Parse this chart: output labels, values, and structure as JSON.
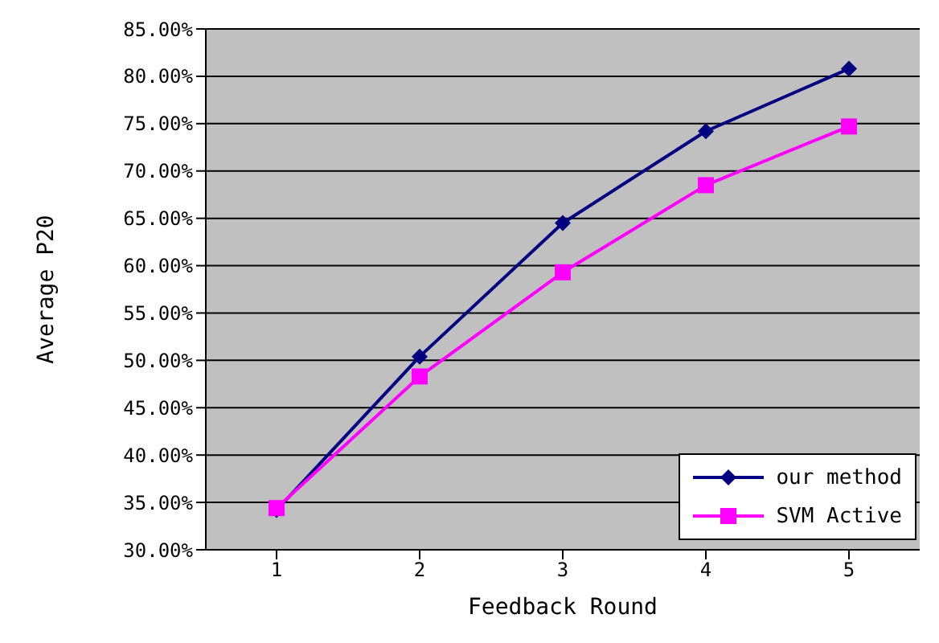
{
  "chart_data": {
    "type": "line",
    "xlabel": "Feedback Round",
    "ylabel": "Average P20",
    "categories": [
      "1",
      "2",
      "3",
      "4",
      "5"
    ],
    "series": [
      {
        "name": "our method",
        "color": "#000080",
        "marker": "diamond",
        "values": [
          34.2,
          50.4,
          64.5,
          74.2,
          80.8
        ]
      },
      {
        "name": "SVM Active",
        "color": "#ff00ff",
        "marker": "square",
        "values": [
          34.4,
          48.3,
          59.3,
          68.5,
          74.7
        ]
      }
    ],
    "ylim": [
      30,
      85
    ],
    "yticks": [
      {
        "value": 30,
        "label": "30.00%"
      },
      {
        "value": 35,
        "label": "35.00%"
      },
      {
        "value": 40,
        "label": "40.00%"
      },
      {
        "value": 45,
        "label": "45.00%"
      },
      {
        "value": 50,
        "label": "50.00%"
      },
      {
        "value": 55,
        "label": "55.00%"
      },
      {
        "value": 60,
        "label": "60.00%"
      },
      {
        "value": 65,
        "label": "65.00%"
      },
      {
        "value": 70,
        "label": "70.00%"
      },
      {
        "value": 75,
        "label": "75.00%"
      },
      {
        "value": 80,
        "label": "80.00%"
      },
      {
        "value": 85,
        "label": "85.00%"
      }
    ],
    "grid": "y",
    "legend": "bottom right",
    "line_style": "solid"
  }
}
